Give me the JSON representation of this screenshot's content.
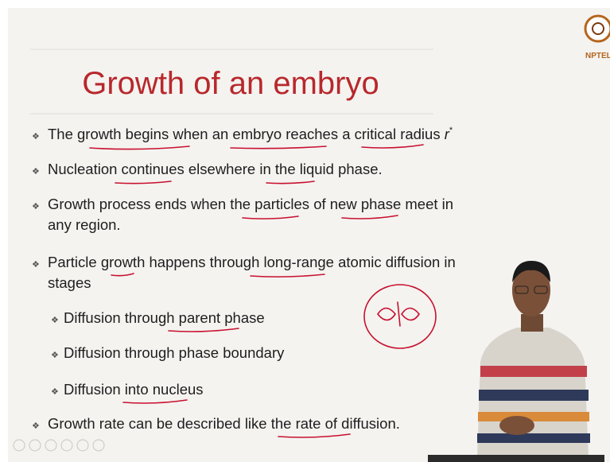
{
  "header": {
    "title": "Growth of an embryo",
    "logo": "NPTEL"
  },
  "bullets": [
    {
      "lines": [
        "The growth begins when an embryo reaches a critical radius"
      ],
      "symbol": "r",
      "superscript": "*"
    },
    {
      "lines": [
        "Nucleation continues elsewhere in the liquid phase."
      ]
    },
    {
      "lines": [
        "Growth process ends when the particles of new phase meet in",
        "any region."
      ]
    },
    {
      "lines": [
        "Particle growth happens through long-range atomic diffusion in",
        "stages"
      ]
    }
  ],
  "sub_bullets": [
    "Diffusion through parent phase",
    "Diffusion through phase boundary",
    "Diffusion into nucleus"
  ],
  "final_bullet": "Growth rate can be described like the rate of diffusion."
}
